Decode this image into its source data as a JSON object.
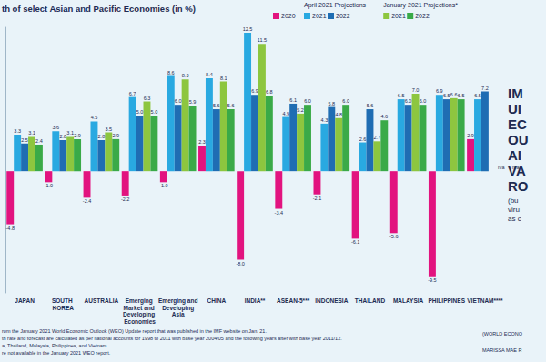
{
  "chart_data": {
    "type": "bar",
    "title": "th of select Asian and Pacific Economies (in %)",
    "categories": [
      "JAPAN",
      "SOUTH KOREA",
      "AUSTRALIA",
      "Emerging Market and Developing Economies",
      "Emerging and Developing Asia",
      "CHINA",
      "INDIA**",
      "ASEAN-5***",
      "INDONESIA",
      "THAILAND",
      "MALAYSIA",
      "PHILIPPINES",
      "VIETNAM****"
    ],
    "series": [
      {
        "name": "2020",
        "color": "#e2137f",
        "values": [
          -4.8,
          -1.0,
          -2.4,
          -2.2,
          -1.0,
          2.3,
          -8.0,
          -3.4,
          -2.1,
          -6.1,
          -5.6,
          -9.5,
          2.9
        ],
        "value_labels": [
          "-4.8",
          "-1.0",
          "-2.4",
          "-2.2",
          "-1.0",
          "2.3",
          "-8.0",
          "-3.4",
          "-2.1",
          "-6.1",
          "-5.6",
          "-9.5",
          "2.9"
        ]
      },
      {
        "name": "2021",
        "group": "April 2021 Projections",
        "color": "#29a9e1",
        "values": [
          3.3,
          3.6,
          4.5,
          6.7,
          8.6,
          8.4,
          12.5,
          4.9,
          4.3,
          2.6,
          6.5,
          6.9,
          6.5
        ],
        "value_labels": [
          "3.3",
          "3.6",
          "4.5",
          "6.7",
          "8.6",
          "8.4",
          "12.5",
          "4.9",
          "4.3",
          "2.6",
          "6.5",
          "6.9",
          "6.5"
        ]
      },
      {
        "name": "2022",
        "group": "April 2021 Projections",
        "color": "#1f6db3",
        "values": [
          2.5,
          2.8,
          2.8,
          5.0,
          6.0,
          5.6,
          6.9,
          6.1,
          5.8,
          5.6,
          6.0,
          6.5,
          7.2
        ],
        "value_labels": [
          "2.5",
          "2.8",
          "2.8",
          "5.0",
          "6.0",
          "5.6",
          "6.9",
          "6.1",
          "5.8",
          "5.6",
          "6.0",
          "6.5",
          "7.2"
        ]
      },
      {
        "name": "2021",
        "group": "January 2021 Projections*",
        "color": "#8dc63f",
        "values": [
          3.1,
          3.1,
          3.5,
          6.3,
          8.3,
          8.1,
          11.5,
          5.2,
          4.8,
          2.7,
          7.0,
          6.6,
          null
        ],
        "value_labels": [
          "3.1",
          "3.1",
          "3.5",
          "6.3",
          "8.3",
          "8.1",
          "11.5",
          "5.2",
          "4.8",
          "2.7",
          "7.0",
          "6.6",
          "n/a"
        ]
      },
      {
        "name": "2022",
        "group": "January 2021 Projections*",
        "color": "#3aaa48",
        "values": [
          2.4,
          2.9,
          2.9,
          5.0,
          5.9,
          5.6,
          6.8,
          6.0,
          6.0,
          4.6,
          6.0,
          6.5,
          null
        ],
        "value_labels": [
          "2.4",
          "2.9",
          "2.9",
          "5.0",
          "5.9",
          "5.6",
          "6.8",
          "6.0",
          "6.0",
          "4.6",
          "6.0",
          "6.5",
          "n/a"
        ]
      }
    ],
    "ylim": [
      -11,
      13
    ],
    "tick_labels": false,
    "grid": false,
    "data_labels": true,
    "legend": "top"
  },
  "notes": [
    "rom the January 2021 World Economic Outlook (WEO) Update report that was published in the IMF website on Jan. 21.",
    "th rate and forecast are calculated as per national accounts for 1998 to 2011 with base year 2004/05 and the following years after with base year 2011/12.",
    "a, Thailand, Malaysia, Philippines, and Vietnam.",
    "re not available in the January 2021 WEO report."
  ],
  "side_title": [
    "IM",
    "UI",
    "EC",
    "OU",
    "AI",
    "VA",
    "RO"
  ],
  "side_subtitle": [
    "(bu",
    "viru",
    "as c"
  ],
  "credits": [
    "(WORLD ECONO",
    "MARISSA MAE R"
  ]
}
